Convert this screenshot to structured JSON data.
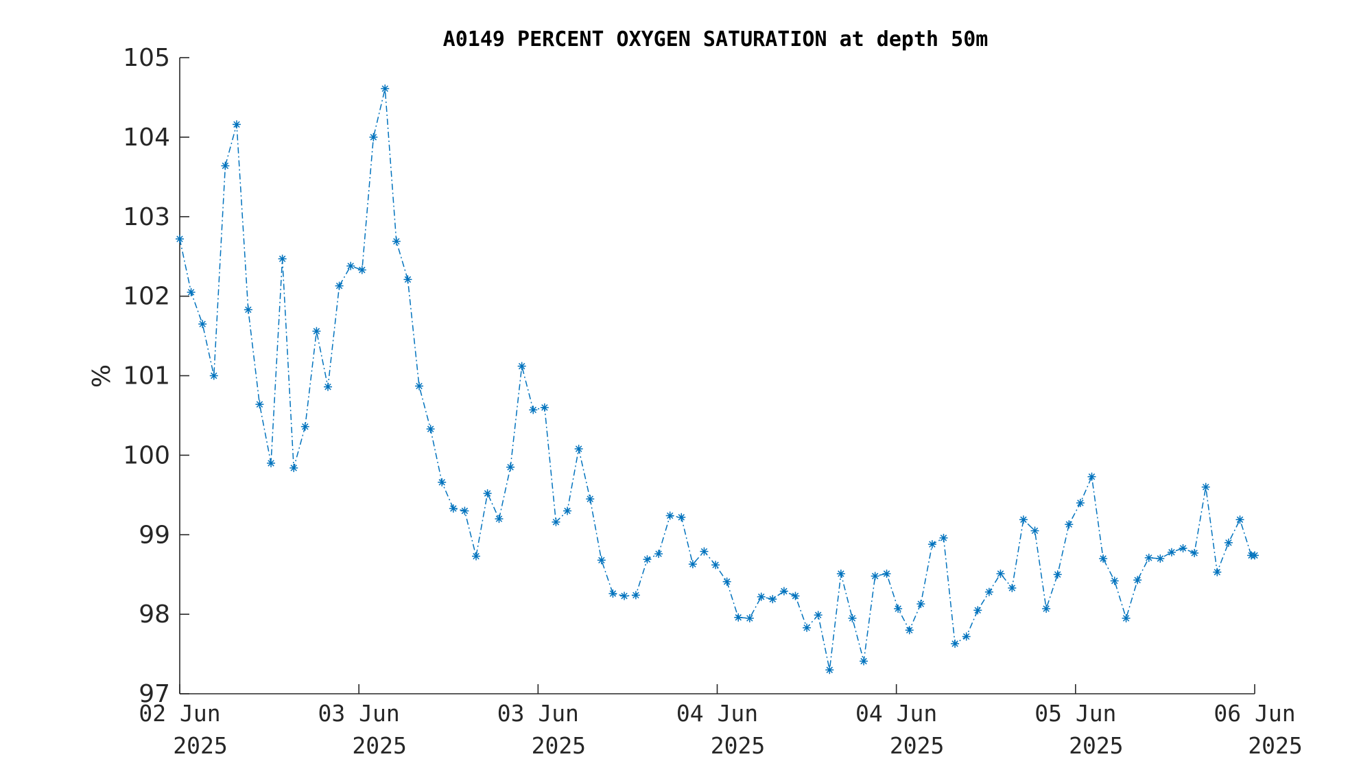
{
  "chart_data": {
    "type": "line",
    "title": "A0149 PERCENT OXYGEN SATURATION at depth 50m",
    "ylabel": "%",
    "xlabel": "",
    "ylim": [
      97,
      105
    ],
    "yticks": [
      97,
      98,
      99,
      100,
      101,
      102,
      103,
      104,
      105
    ],
    "xlim": [
      "2025-06-02T00:00",
      "2025-06-06T00:00"
    ],
    "xtick_labels": [
      {
        "day": "02 Jun",
        "year": "2025"
      },
      {
        "day": "03 Jun",
        "year": "2025"
      },
      {
        "day": "03 Jun",
        "year": "2025"
      },
      {
        "day": "04 Jun",
        "year": "2025"
      },
      {
        "day": "04 Jun",
        "year": "2025"
      },
      {
        "day": "05 Jun",
        "year": "2025"
      },
      {
        "day": "06 Jun",
        "year": "2025"
      }
    ],
    "grid": false,
    "line_style": "dash-dot",
    "marker": "asterisk",
    "color": "#0072BD",
    "series": [
      {
        "x": [
          "2025-06-02T00:00",
          "2025-06-02T01:01",
          "2025-06-02T02:02",
          "2025-06-02T03:03",
          "2025-06-02T04:04",
          "2025-06-02T05:05",
          "2025-06-02T06:07",
          "2025-06-02T07:08",
          "2025-06-02T08:09",
          "2025-06-02T09:10",
          "2025-06-02T10:11",
          "2025-06-02T11:12",
          "2025-06-02T12:13",
          "2025-06-02T13:14",
          "2025-06-02T14:15",
          "2025-06-02T15:16",
          "2025-06-02T16:17",
          "2025-06-02T17:18",
          "2025-06-02T18:20",
          "2025-06-02T19:21",
          "2025-06-02T20:22",
          "2025-06-02T21:23",
          "2025-06-02T22:24",
          "2025-06-02T23:25",
          "2025-06-03T00:26",
          "2025-06-03T01:27",
          "2025-06-03T02:28",
          "2025-06-03T03:29",
          "2025-06-03T04:31",
          "2025-06-03T05:32",
          "2025-06-03T06:33",
          "2025-06-03T07:34",
          "2025-06-03T08:35",
          "2025-06-03T09:36",
          "2025-06-03T10:37",
          "2025-06-03T11:38",
          "2025-06-03T12:39",
          "2025-06-03T13:40",
          "2025-06-03T14:41",
          "2025-06-03T15:42",
          "2025-06-03T16:44",
          "2025-06-03T17:45",
          "2025-06-03T18:46",
          "2025-06-03T19:47",
          "2025-06-03T20:48",
          "2025-06-03T21:49",
          "2025-06-03T22:50",
          "2025-06-03T23:51",
          "2025-06-04T00:52",
          "2025-06-04T01:53",
          "2025-06-04T02:54",
          "2025-06-04T03:56",
          "2025-06-04T04:57",
          "2025-06-04T05:58",
          "2025-06-04T06:59",
          "2025-06-04T08:00",
          "2025-06-04T09:01",
          "2025-06-04T10:02",
          "2025-06-04T11:03",
          "2025-06-04T12:04",
          "2025-06-04T13:05",
          "2025-06-04T14:06",
          "2025-06-04T15:08",
          "2025-06-04T16:09",
          "2025-06-04T17:10",
          "2025-06-04T18:11",
          "2025-06-04T19:12",
          "2025-06-04T20:13",
          "2025-06-04T21:14",
          "2025-06-04T22:15",
          "2025-06-04T23:16",
          "2025-06-05T00:17",
          "2025-06-05T01:18",
          "2025-06-05T02:20",
          "2025-06-05T03:21",
          "2025-06-05T04:22",
          "2025-06-05T05:23",
          "2025-06-05T06:24",
          "2025-06-05T07:25",
          "2025-06-05T08:26",
          "2025-06-05T09:27",
          "2025-06-05T10:28",
          "2025-06-05T11:29",
          "2025-06-05T12:31",
          "2025-06-05T13:32",
          "2025-06-05T14:33",
          "2025-06-05T15:34",
          "2025-06-05T16:35",
          "2025-06-05T17:36",
          "2025-06-05T18:37",
          "2025-06-05T19:38",
          "2025-06-05T20:39",
          "2025-06-05T21:40",
          "2025-06-05T22:41",
          "2025-06-05T23:42",
          "2025-06-06T00:00"
        ],
        "y": [
          102.72,
          102.05,
          101.65,
          101.0,
          103.64,
          104.16,
          101.83,
          100.64,
          99.9,
          102.47,
          99.84,
          100.36,
          101.56,
          100.86,
          102.13,
          102.38,
          102.33,
          104.0,
          104.61,
          102.69,
          102.21,
          100.87,
          100.33,
          99.66,
          99.33,
          99.3,
          98.73,
          99.52,
          99.2,
          99.85,
          101.12,
          100.57,
          100.6,
          99.16,
          99.3,
          100.08,
          99.45,
          98.68,
          98.26,
          98.23,
          98.24,
          98.69,
          98.76,
          99.24,
          99.22,
          98.63,
          98.79,
          98.62,
          98.41,
          97.96,
          97.95,
          98.22,
          98.19,
          98.29,
          98.23,
          97.83,
          97.99,
          97.3,
          98.51,
          97.95,
          97.41,
          98.48,
          98.51,
          98.07,
          97.8,
          98.13,
          98.88,
          98.96,
          97.63,
          97.72,
          98.05,
          98.28,
          98.51,
          98.33,
          99.19,
          99.05,
          98.07,
          98.5,
          99.13,
          99.4,
          99.73,
          98.7,
          98.42,
          97.95,
          98.43,
          98.71,
          98.7,
          98.78,
          98.83,
          98.77,
          99.6,
          98.53,
          98.9,
          99.19,
          98.74,
          98.74
        ]
      }
    ]
  }
}
